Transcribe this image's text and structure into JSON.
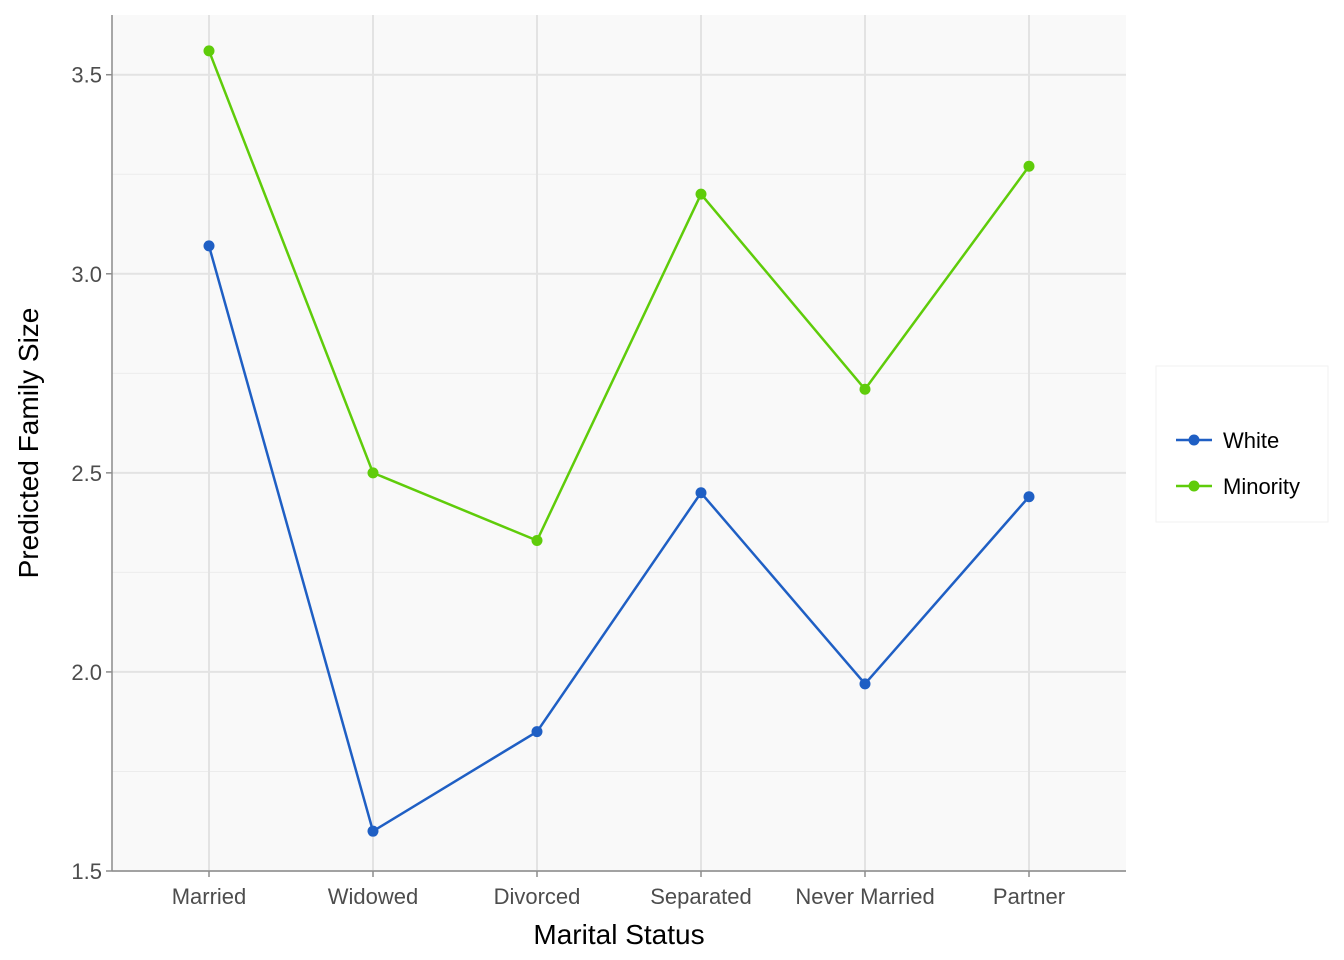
{
  "chart_data": {
    "type": "line",
    "title": "",
    "xlabel": "Marital Status",
    "ylabel": "Predicted Family Size",
    "categories": [
      "Married",
      "Widowed",
      "Divorced",
      "Separated",
      "Never Married",
      "Partner"
    ],
    "ylim": [
      1.5,
      3.65
    ],
    "yticks": [
      1.5,
      2.0,
      2.5,
      3.0,
      3.5
    ],
    "ytick_labels": [
      "1.5",
      "2.0",
      "2.5",
      "3.0",
      "3.5"
    ],
    "grid": true,
    "legend_position": "right",
    "series": [
      {
        "name": "White",
        "color": "#1f5fc4",
        "values": [
          3.07,
          1.6,
          1.85,
          2.45,
          1.97,
          2.44
        ]
      },
      {
        "name": "Minority",
        "color": "#5fcc0a",
        "values": [
          3.56,
          2.5,
          2.33,
          3.2,
          2.71,
          3.27
        ]
      }
    ]
  }
}
